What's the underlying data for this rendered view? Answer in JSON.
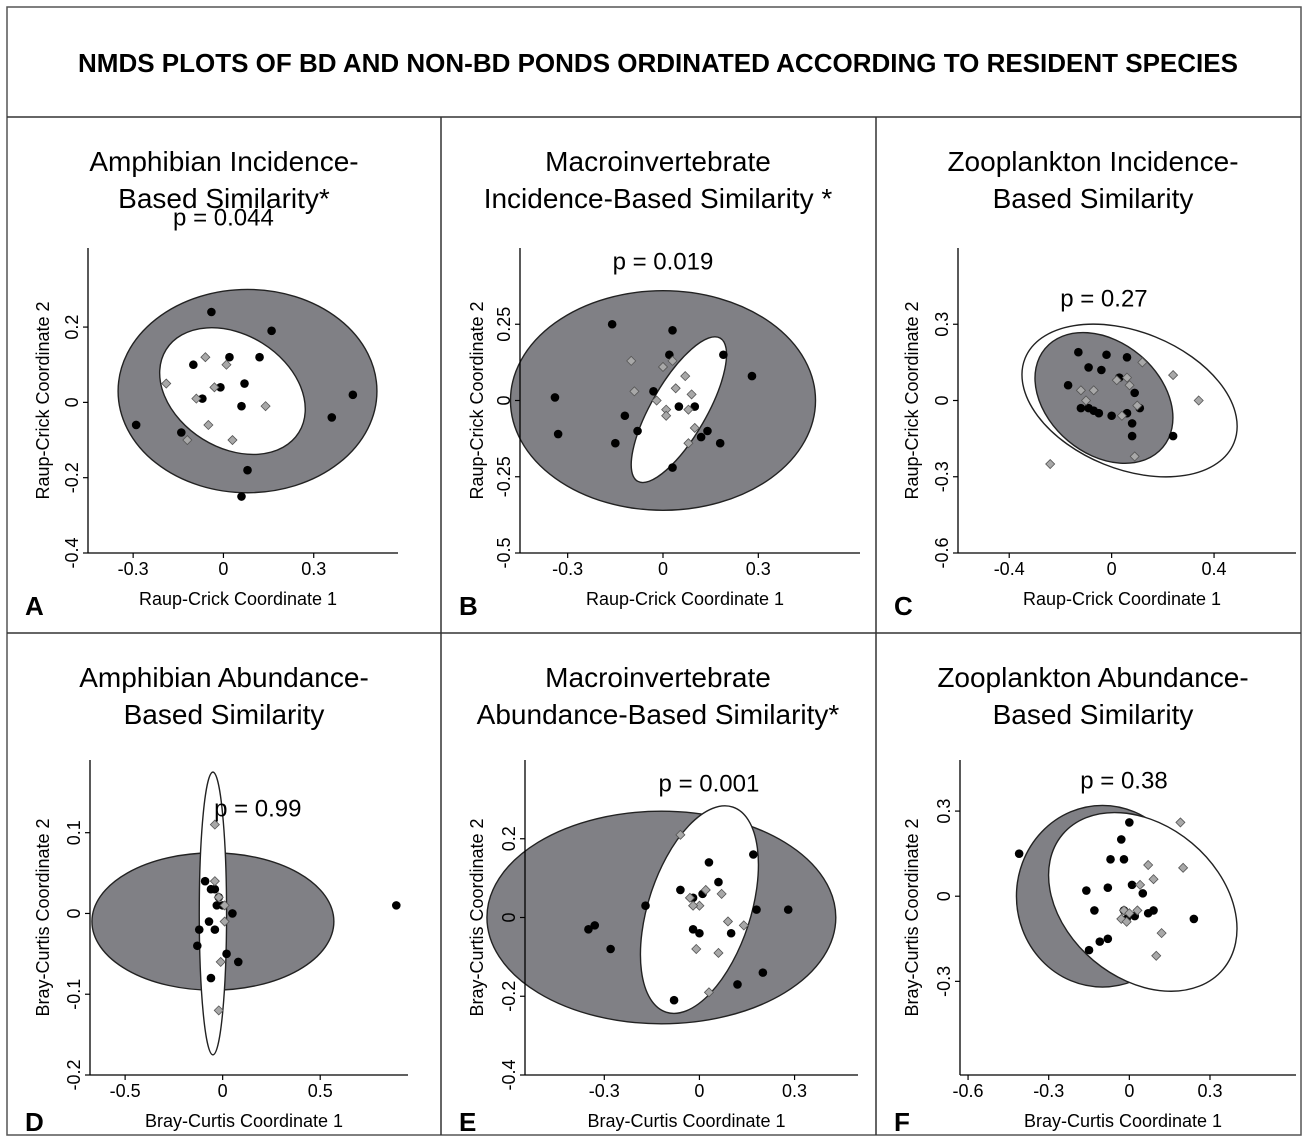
{
  "figure_title": "NMDS PLOTS OF BD AND NON-BD PONDS ORDINATED ACCORDING TO RESIDENT SPECIES",
  "colors": {
    "non_bd_ellipse_fill": "#808085",
    "bd_ellipse_fill": "#ffffff",
    "non_bd_point": "#000000",
    "bd_point": "#a8a8a8"
  },
  "chart_data": [
    {
      "panel": "A",
      "type": "scatter",
      "title": [
        "Amphibian Incidence-",
        "Based Similarity*"
      ],
      "annotation": "p = 0.044",
      "xlabel": "Raup-Crick Coordinate 1",
      "ylabel": "Raup-Crick Coordinate 2",
      "xlim": [
        -0.45,
        0.58
      ],
      "ylim": [
        -0.4,
        0.41
      ],
      "xticks": [
        -0.3,
        0,
        0.3
      ],
      "xticklabels": [
        "-0.3",
        "0",
        "0.3"
      ],
      "yticks": [
        -0.4,
        -0.2,
        0,
        0.2
      ],
      "yticklabels": [
        "-0.4",
        "-0.2",
        "0",
        "0.2"
      ],
      "grid": false,
      "ellipses": [
        {
          "group": "non-Bd",
          "cx": 0.08,
          "cy": 0.03,
          "rx": 0.43,
          "ry": 0.27,
          "angle": 0
        },
        {
          "group": "Bd",
          "cx": 0.03,
          "cy": 0.03,
          "rx": 0.26,
          "ry": 0.15,
          "angle": -32
        }
      ],
      "series": [
        {
          "group": "non-Bd",
          "marker": "circle",
          "x": [
            -0.04,
            0.16,
            -0.1,
            -0.07,
            -0.01,
            0.02,
            0.07,
            0.12,
            0.06,
            0.36,
            0.43,
            -0.29,
            -0.14,
            0.08,
            0.06
          ],
          "y": [
            0.24,
            0.19,
            0.1,
            0.01,
            0.04,
            0.12,
            0.05,
            0.12,
            -0.01,
            -0.04,
            0.02,
            -0.06,
            -0.08,
            -0.18,
            -0.25
          ]
        },
        {
          "group": "Bd",
          "marker": "diamond",
          "x": [
            -0.19,
            -0.06,
            -0.03,
            -0.09,
            0.01,
            0.14,
            -0.05,
            0.03,
            -0.12
          ],
          "y": [
            0.05,
            0.12,
            0.04,
            0.01,
            0.1,
            -0.01,
            -0.06,
            -0.1,
            -0.1
          ]
        }
      ]
    },
    {
      "panel": "B",
      "type": "scatter",
      "title": [
        "Macroinvertebrate",
        "Incidence-Based Similarity *"
      ],
      "annotation": "p = 0.019",
      "xlabel": "Raup-Crick Coordinate 1",
      "ylabel": "Raup-Crick Coordinate 2",
      "xlim": [
        -0.45,
        0.62
      ],
      "ylim": [
        -0.5,
        0.5
      ],
      "xticks": [
        -0.3,
        0,
        0.3
      ],
      "xticklabels": [
        "-0.3",
        "0",
        "0.3"
      ],
      "yticks": [
        -0.5,
        -0.25,
        0,
        0.25
      ],
      "yticklabels": [
        "-0.5",
        "-0.25",
        "0",
        "0.25"
      ],
      "grid": false,
      "ellipses": [
        {
          "group": "non-Bd",
          "cx": 0.0,
          "cy": 0.0,
          "rx": 0.48,
          "ry": 0.36,
          "angle": 0
        },
        {
          "group": "Bd",
          "cx": 0.05,
          "cy": -0.03,
          "rx": 0.26,
          "ry": 0.09,
          "angle": 60
        }
      ],
      "series": [
        {
          "group": "non-Bd",
          "marker": "circle",
          "x": [
            -0.16,
            0.03,
            0.02,
            0.19,
            0.28,
            -0.34,
            -0.33,
            -0.12,
            -0.15,
            -0.08,
            -0.03,
            0.05,
            0.1,
            0.12,
            0.14,
            0.18,
            0.03
          ],
          "y": [
            0.25,
            0.23,
            0.15,
            0.15,
            0.08,
            0.01,
            -0.11,
            -0.05,
            -0.14,
            -0.1,
            0.03,
            -0.02,
            -0.02,
            -0.12,
            -0.1,
            -0.14,
            -0.22
          ]
        },
        {
          "group": "Bd",
          "marker": "diamond",
          "x": [
            -0.1,
            0.0,
            0.03,
            0.07,
            -0.09,
            0.04,
            -0.02,
            0.01,
            0.09,
            0.08,
            0.01,
            0.1,
            0.08
          ],
          "y": [
            0.13,
            0.11,
            0.13,
            0.08,
            0.03,
            0.04,
            0.0,
            -0.03,
            0.02,
            -0.03,
            -0.05,
            -0.09,
            -0.14
          ]
        }
      ]
    },
    {
      "panel": "C",
      "type": "scatter",
      "title": [
        "Zooplankton Incidence-",
        "Based Similarity"
      ],
      "annotation": "p = 0.27",
      "xlabel": "Raup-Crick Coordinate 1",
      "ylabel": "Raup-Crick Coordinate 2",
      "xlim": [
        -0.6,
        0.72
      ],
      "ylim": [
        -0.6,
        0.6
      ],
      "xticks": [
        -0.4,
        0,
        0.4
      ],
      "xticklabels": [
        "-0.4",
        "0",
        "0.4"
      ],
      "yticks": [
        -0.6,
        -0.3,
        0,
        0.3
      ],
      "yticklabels": [
        "-0.6",
        "-0.3",
        "0",
        "0.3"
      ],
      "grid": false,
      "ellipses": [
        {
          "group": "Bd",
          "cx": 0.07,
          "cy": 0.0,
          "rx": 0.44,
          "ry": 0.27,
          "angle": -22
        },
        {
          "group": "non-Bd",
          "cx": -0.03,
          "cy": 0.01,
          "rx": 0.3,
          "ry": 0.22,
          "angle": -40
        }
      ],
      "series": [
        {
          "group": "non-Bd",
          "marker": "circle",
          "x": [
            -0.13,
            -0.02,
            0.06,
            -0.09,
            -0.04,
            0.03,
            0.09,
            0.11,
            -0.17,
            -0.12,
            -0.09,
            -0.07,
            -0.05,
            0.0,
            0.06,
            0.08,
            0.24,
            0.08
          ],
          "y": [
            0.19,
            0.18,
            0.17,
            0.13,
            0.12,
            0.09,
            0.03,
            -0.03,
            0.06,
            -0.03,
            -0.03,
            -0.04,
            -0.05,
            -0.06,
            -0.05,
            -0.09,
            -0.14,
            -0.14
          ]
        },
        {
          "group": "Bd",
          "marker": "diamond",
          "x": [
            0.12,
            0.06,
            0.24,
            0.34,
            -0.12,
            -0.07,
            0.02,
            0.07,
            -0.1,
            0.04,
            0.1,
            0.09,
            -0.24
          ],
          "y": [
            0.15,
            0.09,
            0.1,
            0.0,
            0.04,
            0.04,
            0.08,
            0.06,
            0.0,
            -0.06,
            -0.02,
            -0.22,
            -0.25
          ]
        }
      ]
    },
    {
      "panel": "D",
      "type": "scatter",
      "title": [
        "Amphibian Abundance-",
        "Based Similarity"
      ],
      "annotation": "p = 0.99",
      "xlabel": "Bray-Curtis Coordinate 1",
      "ylabel": "Bray-Curtis Coordinate 2",
      "xlim": [
        -0.68,
        0.95
      ],
      "ylim": [
        -0.2,
        0.19
      ],
      "xticks": [
        -0.5,
        0,
        0.5
      ],
      "xticklabels": [
        "-0.5",
        "0",
        "0.5"
      ],
      "yticks": [
        -0.2,
        -0.1,
        0,
        0.1
      ],
      "yticklabels": [
        "-0.2",
        "-0.1",
        "0",
        "0.1"
      ],
      "grid": false,
      "ellipses": [
        {
          "group": "non-Bd",
          "cx": -0.05,
          "cy": -0.01,
          "rx": 0.62,
          "ry": 0.085,
          "angle": 0
        },
        {
          "group": "Bd",
          "cx": -0.05,
          "cy": 0.0,
          "rx": 0.07,
          "ry": 0.175,
          "angle": 0
        }
      ],
      "series": [
        {
          "group": "non-Bd",
          "marker": "circle",
          "x": [
            -0.09,
            -0.06,
            -0.04,
            -0.02,
            -0.03,
            0.0,
            0.05,
            -0.12,
            -0.07,
            -0.04,
            -0.13,
            0.02,
            0.08,
            -0.06,
            0.89
          ],
          "y": [
            0.04,
            0.03,
            0.03,
            0.02,
            0.01,
            0.01,
            0.0,
            -0.02,
            -0.01,
            -0.02,
            -0.04,
            -0.05,
            -0.06,
            -0.08,
            0.01
          ]
        },
        {
          "group": "Bd",
          "marker": "diamond",
          "x": [
            -0.04,
            -0.04,
            0.01,
            -0.02,
            0.01,
            -0.01,
            -0.02
          ],
          "y": [
            0.11,
            0.04,
            0.01,
            0.02,
            -0.01,
            -0.06,
            -0.12
          ]
        }
      ]
    },
    {
      "panel": "E",
      "type": "scatter",
      "title": [
        "Macroinvertebrate",
        "Abundance-Based Similarity*"
      ],
      "annotation": "p = 0.001",
      "xlabel": "Bray-Curtis Coordinate 1",
      "ylabel": "Bray-Curtis Coordinate 2",
      "xlim": [
        -0.55,
        0.5
      ],
      "ylim": [
        -0.4,
        0.4
      ],
      "xticks": [
        -0.3,
        0,
        0.3
      ],
      "xticklabels": [
        "-0.3",
        "0",
        "0.3"
      ],
      "yticks": [
        -0.4,
        -0.2,
        0,
        0.2
      ],
      "yticklabels": [
        "-0.4",
        "-0.2",
        "0",
        "0.2"
      ],
      "grid": false,
      "ellipses": [
        {
          "group": "non-Bd",
          "cx": -0.12,
          "cy": 0.0,
          "rx": 0.55,
          "ry": 0.27,
          "angle": 0
        },
        {
          "group": "Bd",
          "cx": 0.0,
          "cy": 0.02,
          "rx": 0.34,
          "ry": 0.13,
          "angle": 72
        }
      ],
      "series": [
        {
          "group": "non-Bd",
          "marker": "circle",
          "x": [
            0.17,
            0.03,
            0.06,
            -0.06,
            -0.02,
            0.01,
            0.18,
            0.28,
            -0.17,
            -0.33,
            -0.35,
            -0.28,
            -0.02,
            0.0,
            0.1,
            0.2,
            0.12,
            -0.08
          ],
          "y": [
            0.16,
            0.14,
            0.09,
            0.07,
            0.05,
            0.06,
            0.02,
            0.02,
            0.03,
            -0.02,
            -0.03,
            -0.08,
            -0.03,
            -0.04,
            -0.04,
            -0.14,
            -0.17,
            -0.21
          ]
        },
        {
          "group": "Bd",
          "marker": "diamond",
          "x": [
            -0.06,
            0.02,
            -0.03,
            0.0,
            -0.02,
            0.07,
            0.09,
            0.14,
            -0.01,
            0.06,
            0.03
          ],
          "y": [
            0.21,
            0.07,
            0.05,
            0.03,
            0.03,
            0.06,
            -0.01,
            -0.02,
            -0.08,
            -0.09,
            -0.19
          ]
        }
      ]
    },
    {
      "panel": "F",
      "type": "scatter",
      "title": [
        "Zooplankton Abundance-",
        "Based Similarity"
      ],
      "annotation": "p = 0.38",
      "xlabel": "Bray-Curtis Coordinate 1",
      "ylabel": "Bray-Curtis Coordinate 2",
      "xlim": [
        -0.63,
        0.62
      ],
      "ylim": [
        -0.63,
        0.48
      ],
      "xticks": [
        -0.6,
        -0.3,
        0,
        0.3
      ],
      "xticklabels": [
        "-0.6",
        "-0.3",
        "0",
        "0.3"
      ],
      "yticks": [
        -0.3,
        0,
        0.3
      ],
      "yticklabels": [
        "-0.3",
        "0",
        "0.3"
      ],
      "grid": false,
      "ellipses": [
        {
          "group": "non-Bd",
          "cx": -0.1,
          "cy": 0.0,
          "rx": 0.32,
          "ry": 0.32,
          "angle": 0
        },
        {
          "group": "Bd",
          "cx": 0.05,
          "cy": -0.02,
          "rx": 0.39,
          "ry": 0.27,
          "angle": -40
        }
      ],
      "series": [
        {
          "group": "non-Bd",
          "marker": "circle",
          "x": [
            -0.41,
            0.0,
            -0.03,
            -0.07,
            -0.02,
            0.01,
            -0.16,
            -0.08,
            0.05,
            -0.13,
            -0.02,
            -0.01,
            0.02,
            0.07,
            0.09,
            0.24,
            -0.08,
            -0.11,
            -0.15
          ],
          "y": [
            0.15,
            0.26,
            0.2,
            0.13,
            0.13,
            0.04,
            0.02,
            0.03,
            0.01,
            -0.05,
            -0.05,
            -0.08,
            -0.07,
            -0.06,
            -0.05,
            -0.08,
            -0.15,
            -0.16,
            -0.19
          ]
        },
        {
          "group": "Bd",
          "marker": "diamond",
          "x": [
            0.19,
            0.07,
            0.09,
            0.04,
            0.2,
            -0.02,
            0.0,
            0.03,
            -0.03,
            -0.01,
            0.12,
            0.1
          ],
          "y": [
            0.26,
            0.11,
            0.06,
            0.04,
            0.1,
            -0.05,
            -0.06,
            -0.05,
            -0.08,
            -0.09,
            -0.13,
            -0.21
          ]
        }
      ]
    }
  ]
}
